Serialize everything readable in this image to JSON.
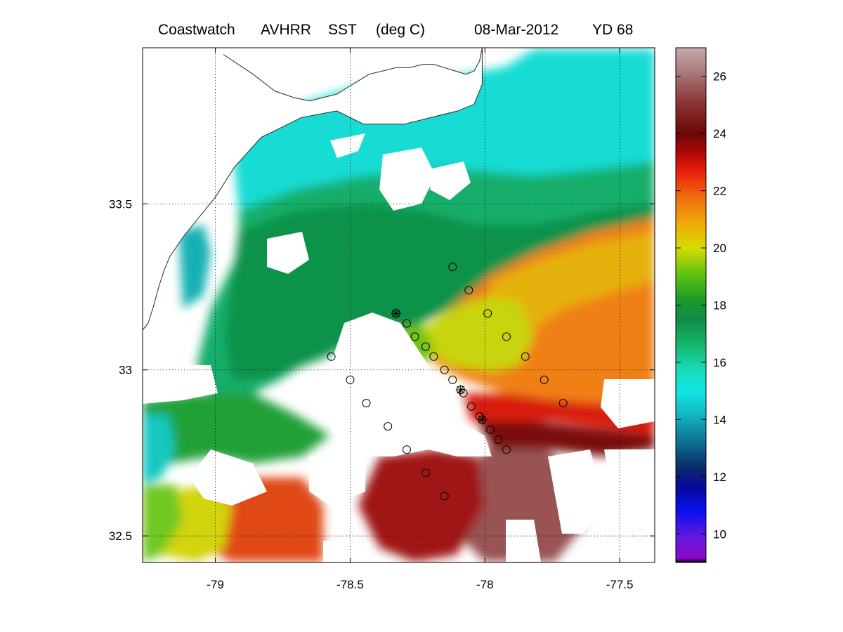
{
  "title": {
    "product": "Coastwatch",
    "sensor": "AVHRR",
    "variable": "SST",
    "units": "(deg C)",
    "date": "08-Mar-2012",
    "yearday": "YD 68"
  },
  "map": {
    "lon_range": [
      -79.27,
      -77.37
    ],
    "lat_range": [
      32.42,
      33.97
    ],
    "lon_ticks": [
      {
        "value": -79,
        "label": "-79"
      },
      {
        "value": -78.5,
        "label": "-78.5"
      },
      {
        "value": -78,
        "label": "-78"
      },
      {
        "value": -77.5,
        "label": "-77.5"
      }
    ],
    "lat_ticks": [
      {
        "value": 32.5,
        "label": "32.5"
      },
      {
        "value": 33,
        "label": "33"
      },
      {
        "value": 33.5,
        "label": "33.5"
      }
    ],
    "grid": true,
    "coastline": [
      [
        -78.97,
        33.95
      ],
      [
        -78.86,
        33.89
      ],
      [
        -78.78,
        33.84
      ],
      [
        -78.71,
        33.82
      ],
      [
        -78.65,
        33.81
      ],
      [
        -78.6,
        33.82
      ],
      [
        -78.55,
        33.83
      ],
      [
        -78.49,
        33.86
      ],
      [
        -78.43,
        33.89
      ],
      [
        -78.38,
        33.9
      ],
      [
        -78.33,
        33.91
      ],
      [
        -78.28,
        33.91
      ],
      [
        -78.23,
        33.92
      ],
      [
        -78.19,
        33.92
      ],
      [
        -78.15,
        33.91
      ],
      [
        -78.11,
        33.9
      ],
      [
        -78.07,
        33.89
      ],
      [
        -78.04,
        33.9
      ],
      [
        -78.02,
        33.93
      ],
      [
        -78.01,
        33.97
      ],
      [
        -78.01,
        33.86
      ],
      [
        -78.04,
        33.8
      ],
      [
        -78.1,
        33.78
      ],
      [
        -78.3,
        33.74
      ],
      [
        -78.45,
        33.74
      ],
      [
        -78.55,
        33.78
      ],
      [
        -78.68,
        33.76
      ],
      [
        -78.83,
        33.7
      ],
      [
        -78.93,
        33.61
      ],
      [
        -79.0,
        33.52
      ],
      [
        -79.07,
        33.45
      ],
      [
        -79.12,
        33.4
      ],
      [
        -79.17,
        33.34
      ],
      [
        -79.19,
        33.3
      ],
      [
        -79.21,
        33.25
      ],
      [
        -79.23,
        33.19
      ],
      [
        -79.25,
        33.14
      ],
      [
        -79.27,
        33.12
      ]
    ],
    "stations": [
      {
        "lon": -78.12,
        "lat": 33.31
      },
      {
        "lon": -78.06,
        "lat": 33.24
      },
      {
        "lon": -77.99,
        "lat": 33.17
      },
      {
        "lon": -77.92,
        "lat": 33.1
      },
      {
        "lon": -77.85,
        "lat": 33.04
      },
      {
        "lon": -77.78,
        "lat": 32.97
      },
      {
        "lon": -77.71,
        "lat": 32.9
      },
      {
        "lon": -78.33,
        "lat": 33.17,
        "cross": true
      },
      {
        "lon": -78.29,
        "lat": 33.14
      },
      {
        "lon": -78.26,
        "lat": 33.1
      },
      {
        "lon": -78.22,
        "lat": 33.07
      },
      {
        "lon": -78.19,
        "lat": 33.04
      },
      {
        "lon": -78.15,
        "lat": 33.0
      },
      {
        "lon": -78.12,
        "lat": 32.97
      },
      {
        "lon": -78.09,
        "lat": 32.94,
        "cross": true
      },
      {
        "lon": -78.08,
        "lat": 32.93
      },
      {
        "lon": -78.05,
        "lat": 32.89
      },
      {
        "lon": -78.02,
        "lat": 32.86
      },
      {
        "lon": -78.01,
        "lat": 32.85,
        "cross": true
      },
      {
        "lon": -77.98,
        "lat": 32.82
      },
      {
        "lon": -77.95,
        "lat": 32.79
      },
      {
        "lon": -77.92,
        "lat": 32.76
      },
      {
        "lon": -78.57,
        "lat": 33.04
      },
      {
        "lon": -78.5,
        "lat": 32.97
      },
      {
        "lon": -78.44,
        "lat": 32.9
      },
      {
        "lon": -78.36,
        "lat": 32.83
      },
      {
        "lon": -78.29,
        "lat": 32.76
      },
      {
        "lon": -78.22,
        "lat": 32.69
      },
      {
        "lon": -78.15,
        "lat": 32.62
      }
    ]
  },
  "colorbar": {
    "range": [
      9,
      27
    ],
    "ticks": [
      {
        "value": 10,
        "label": "10"
      },
      {
        "value": 12,
        "label": "12"
      },
      {
        "value": 14,
        "label": "14"
      },
      {
        "value": 16,
        "label": "16"
      },
      {
        "value": 18,
        "label": "18"
      },
      {
        "value": 20,
        "label": "20"
      },
      {
        "value": 22,
        "label": "22"
      },
      {
        "value": 24,
        "label": "24"
      },
      {
        "value": 26,
        "label": "26"
      }
    ],
    "stops": [
      {
        "value": 9,
        "color": "#000000"
      },
      {
        "value": 9.15,
        "color": "#8a0ac8"
      },
      {
        "value": 9.9,
        "color": "#6418e0"
      },
      {
        "value": 10.8,
        "color": "#0a12f0"
      },
      {
        "value": 11.6,
        "color": "#0808a0"
      },
      {
        "value": 12.3,
        "color": "#0a2a6a"
      },
      {
        "value": 13.2,
        "color": "#0c7090"
      },
      {
        "value": 14.2,
        "color": "#14b8c4"
      },
      {
        "value": 15,
        "color": "#10e6e6"
      },
      {
        "value": 15.8,
        "color": "#18d8b4"
      },
      {
        "value": 16.7,
        "color": "#14b464"
      },
      {
        "value": 17.5,
        "color": "#108a48"
      },
      {
        "value": 18.2,
        "color": "#1e9a28"
      },
      {
        "value": 19.1,
        "color": "#60c410"
      },
      {
        "value": 20,
        "color": "#d6dc04"
      },
      {
        "value": 20.9,
        "color": "#f0a808"
      },
      {
        "value": 21.8,
        "color": "#f06a10"
      },
      {
        "value": 22.7,
        "color": "#e81c0c"
      },
      {
        "value": 23.3,
        "color": "#b00808"
      },
      {
        "value": 24,
        "color": "#6a0808"
      },
      {
        "value": 25,
        "color": "#8a3030"
      },
      {
        "value": 26,
        "color": "#a47070"
      },
      {
        "value": 27,
        "color": "#c8aaaa"
      }
    ]
  }
}
